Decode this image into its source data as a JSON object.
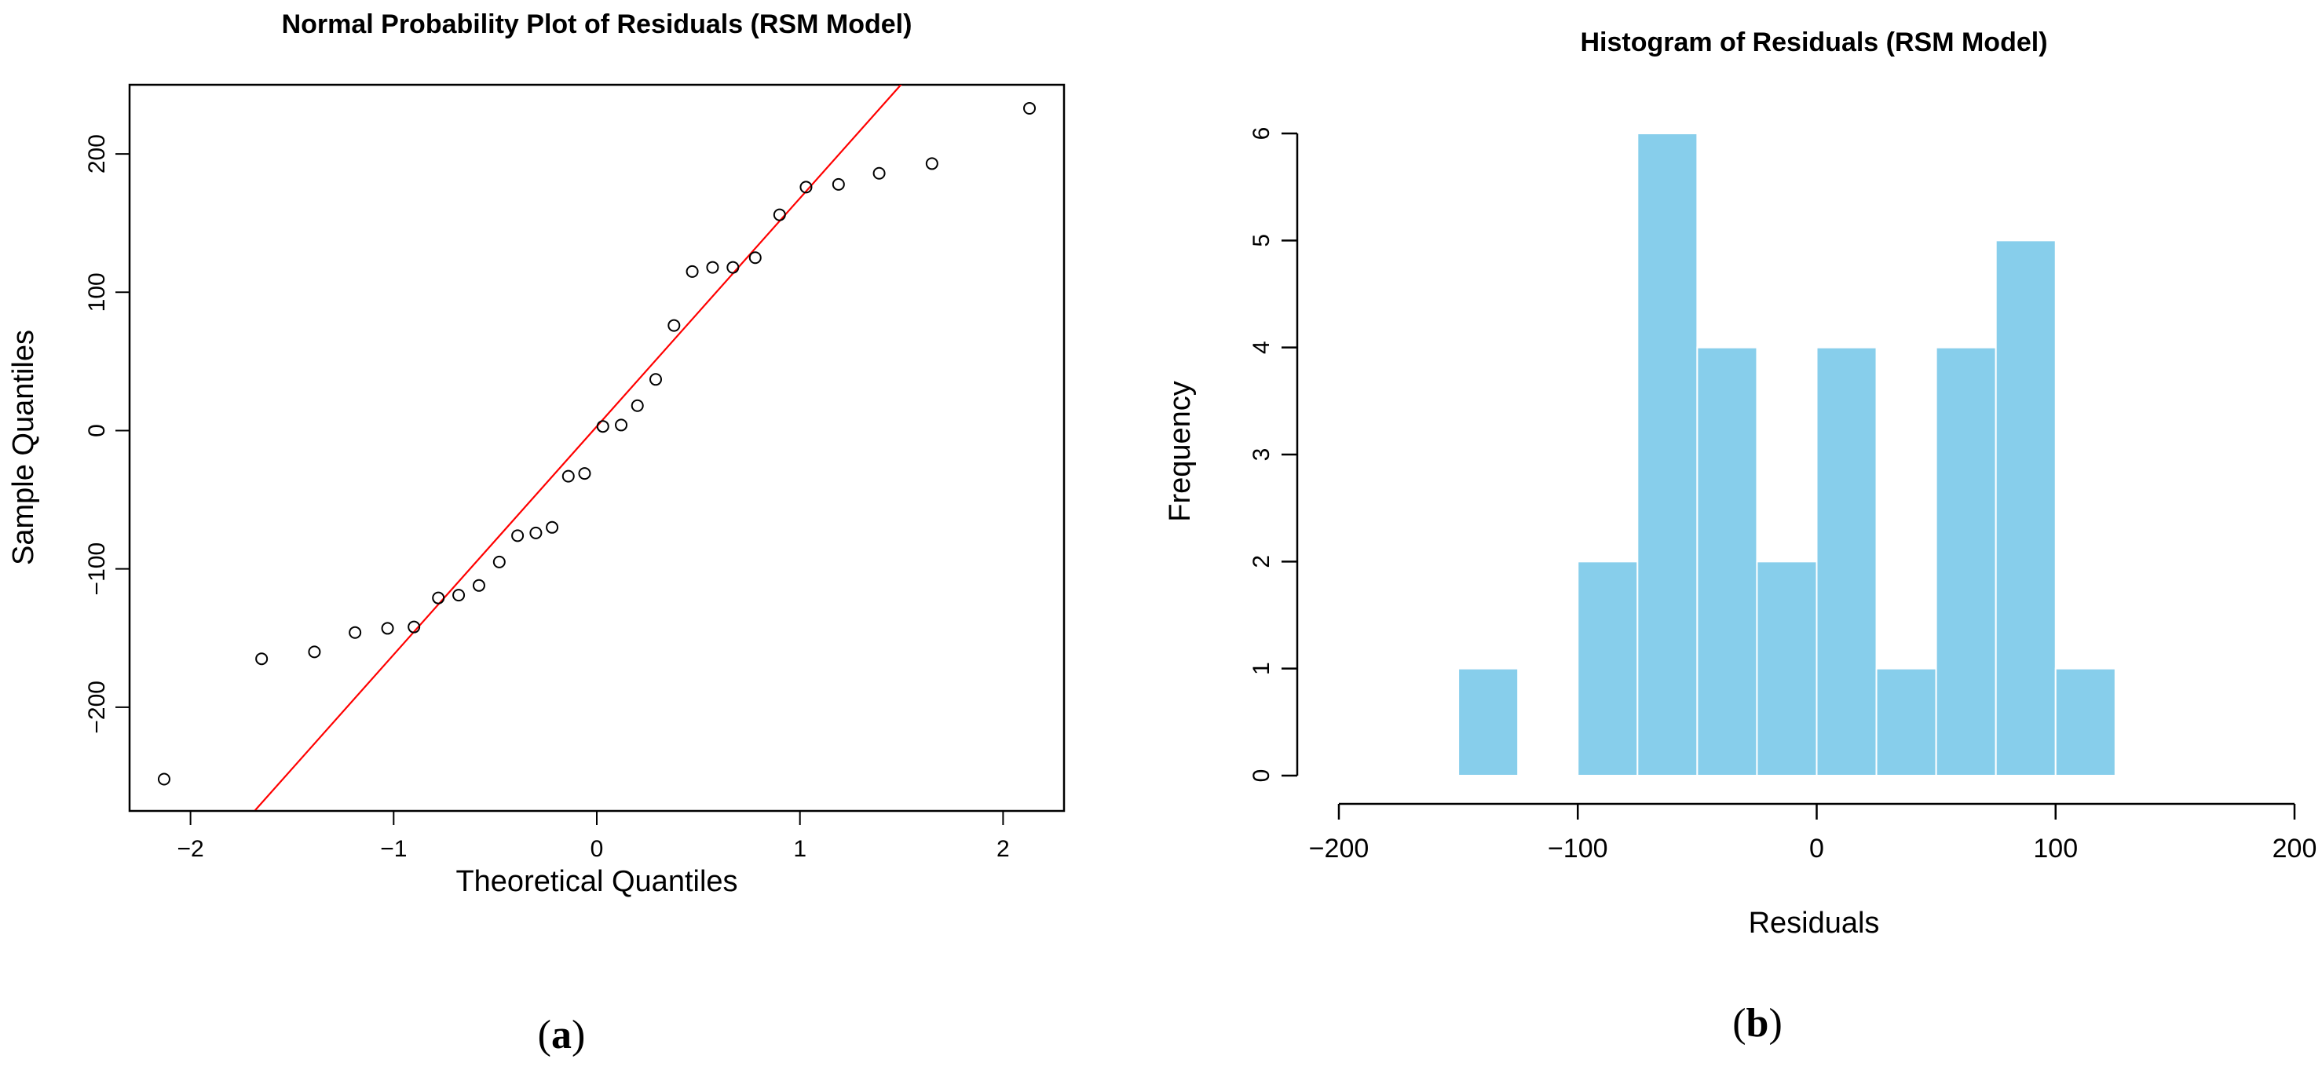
{
  "panels": {
    "a": {
      "label_open": "(",
      "label_letter": "a",
      "label_close": ")"
    },
    "b": {
      "label_open": "(",
      "label_letter": "b",
      "label_close": ")"
    }
  },
  "colors": {
    "qq_line": "#ff0000",
    "bar_fill": "#87ceeb",
    "bar_edge": "#ffffff",
    "axis": "#000000"
  },
  "chart_data": [
    {
      "type": "scatter",
      "title": "Normal Probability Plot of Residuals (RSM Model)",
      "xlabel": "Theoretical Quantiles",
      "ylabel": "Sample Quantiles",
      "xlim": [
        -2.3,
        2.3
      ],
      "ylim": [
        -275,
        250
      ],
      "x_ticks": [
        -2,
        -1,
        0,
        1,
        2
      ],
      "y_ticks": [
        -200,
        -100,
        0,
        100,
        200
      ],
      "points": [
        {
          "x": -2.13,
          "y": -252
        },
        {
          "x": -1.65,
          "y": -165
        },
        {
          "x": -1.39,
          "y": -160
        },
        {
          "x": -1.19,
          "y": -146
        },
        {
          "x": -1.03,
          "y": -143
        },
        {
          "x": -0.9,
          "y": -142
        },
        {
          "x": -0.78,
          "y": -121
        },
        {
          "x": -0.68,
          "y": -119
        },
        {
          "x": -0.58,
          "y": -112
        },
        {
          "x": -0.48,
          "y": -95
        },
        {
          "x": -0.39,
          "y": -76
        },
        {
          "x": -0.3,
          "y": -74
        },
        {
          "x": -0.22,
          "y": -70
        },
        {
          "x": -0.14,
          "y": -33
        },
        {
          "x": -0.06,
          "y": -31
        },
        {
          "x": 0.03,
          "y": 3
        },
        {
          "x": 0.12,
          "y": 4
        },
        {
          "x": 0.2,
          "y": 18
        },
        {
          "x": 0.29,
          "y": 37
        },
        {
          "x": 0.38,
          "y": 76
        },
        {
          "x": 0.47,
          "y": 115
        },
        {
          "x": 0.57,
          "y": 118
        },
        {
          "x": 0.67,
          "y": 118
        },
        {
          "x": 0.78,
          "y": 125
        },
        {
          "x": 0.9,
          "y": 156
        },
        {
          "x": 1.03,
          "y": 176
        },
        {
          "x": 1.19,
          "y": 178
        },
        {
          "x": 1.39,
          "y": 186
        },
        {
          "x": 1.65,
          "y": 193
        },
        {
          "x": 2.13,
          "y": 233
        }
      ],
      "reference_line": {
        "intercept": 3,
        "slope": 165
      }
    },
    {
      "type": "bar",
      "title": "Histogram of Residuals (RSM Model)",
      "xlabel": "Residuals",
      "ylabel": "Frequency",
      "xlim": [
        -200,
        200
      ],
      "ylim": [
        0,
        6
      ],
      "x_ticks": [
        -200,
        -100,
        0,
        100,
        200
      ],
      "y_ticks": [
        0,
        1,
        2,
        3,
        4,
        5,
        6
      ],
      "bins": [
        {
          "from": -150,
          "to": -125,
          "count": 1
        },
        {
          "from": -125,
          "to": -100,
          "count": 0
        },
        {
          "from": -100,
          "to": -75,
          "count": 2
        },
        {
          "from": -75,
          "to": -50,
          "count": 6
        },
        {
          "from": -50,
          "to": -25,
          "count": 4
        },
        {
          "from": -25,
          "to": 0,
          "count": 2
        },
        {
          "from": 0,
          "to": 25,
          "count": 4
        },
        {
          "from": 25,
          "to": 50,
          "count": 1
        },
        {
          "from": 50,
          "to": 75,
          "count": 4
        },
        {
          "from": 75,
          "to": 100,
          "count": 5
        },
        {
          "from": 100,
          "to": 125,
          "count": 1
        }
      ]
    }
  ]
}
